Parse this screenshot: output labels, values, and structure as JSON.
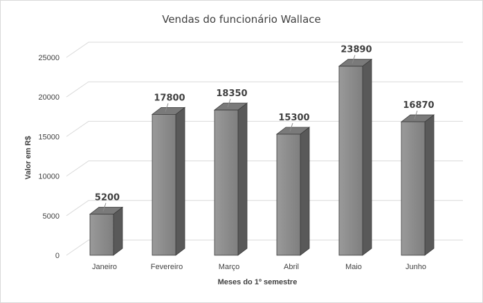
{
  "chart_data": {
    "type": "bar",
    "title": "Vendas do funcionário Wallace",
    "xlabel": "Meses do 1º semestre",
    "ylabel": "Valor em R$",
    "categories": [
      "Janeiro",
      "Fevereiro",
      "Março",
      "Abril",
      "Maio",
      "Junho"
    ],
    "values": [
      5200,
      17800,
      18350,
      15300,
      23890,
      16870
    ],
    "data_labels": [
      "5200",
      "17800",
      "18350",
      "15300",
      "23890",
      "16870"
    ],
    "y_ticks": [
      "0",
      "5000",
      "10000",
      "15000",
      "20000",
      "25000"
    ],
    "ylim": [
      0,
      25000
    ],
    "grid": true,
    "style": "3d-column",
    "legend": "none",
    "colors": {
      "bar_front": "#8c8c8c",
      "bar_side": "#595959",
      "bar_top": "#7a7a7a",
      "grid": "#d9d9d9",
      "text": "#404040"
    }
  }
}
